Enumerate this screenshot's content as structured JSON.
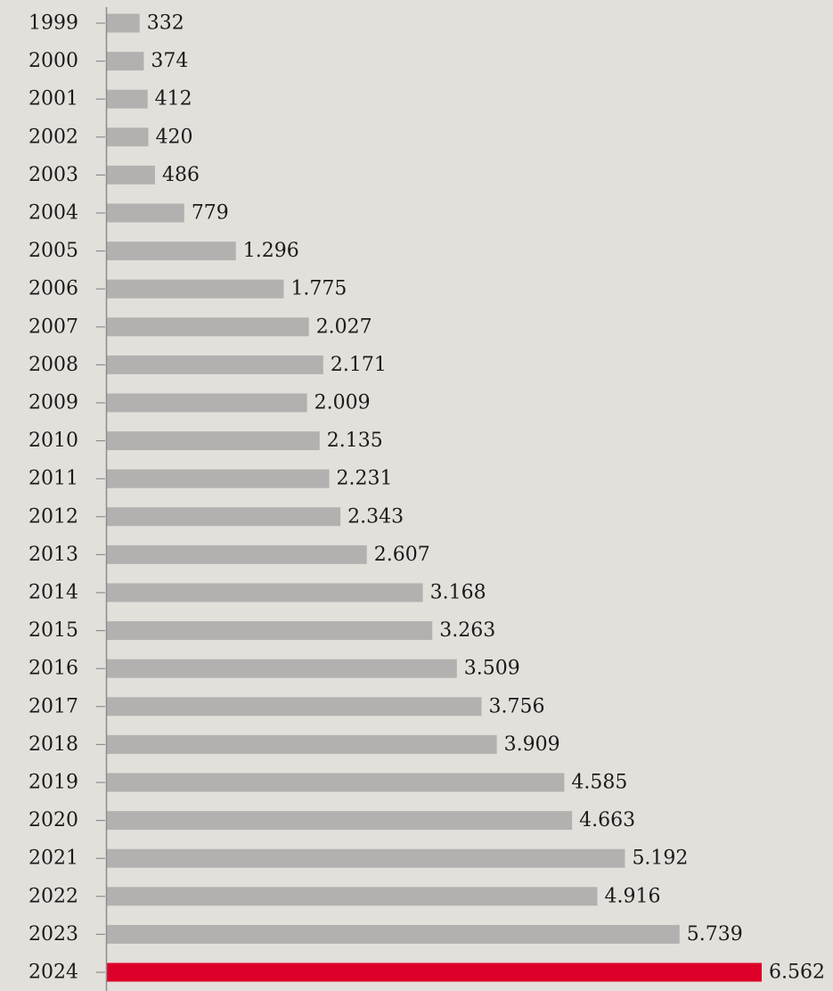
{
  "colors": {
    "background": "#e3e0dc",
    "bar": "#b2b1b0",
    "highlight": "#dc0028",
    "axis": "#8c8c8c",
    "text": "#1a1a1a"
  },
  "chart_data": {
    "type": "bar",
    "orientation": "horizontal",
    "title": "",
    "xlabel": "",
    "ylabel": "",
    "grid": false,
    "legend": "none",
    "xlim": [
      0,
      6562
    ],
    "highlight_category": "2024",
    "categories": [
      "1999",
      "2000",
      "2001",
      "2002",
      "2003",
      "2004",
      "2005",
      "2006",
      "2007",
      "2008",
      "2009",
      "2010",
      "2011",
      "2012",
      "2013",
      "2014",
      "2015",
      "2016",
      "2017",
      "2018",
      "2019",
      "2020",
      "2021",
      "2022",
      "2023",
      "2024"
    ],
    "values": [
      332,
      374,
      412,
      420,
      486,
      779,
      1296,
      1775,
      2027,
      2171,
      2009,
      2135,
      2231,
      2343,
      2607,
      3168,
      3263,
      3509,
      3756,
      3909,
      4585,
      4663,
      5192,
      4916,
      5739,
      6562
    ],
    "data_labels": [
      "332",
      "374",
      "412",
      "420",
      "486",
      "779",
      "1.296",
      "1.775",
      "2.027",
      "2.171",
      "2.009",
      "2.135",
      "2.231",
      "2.343",
      "2.607",
      "3.168",
      "3.263",
      "3.509",
      "3.756",
      "3.909",
      "4.585",
      "4.663",
      "5.192",
      "4.916",
      "5.739",
      "6.562"
    ]
  }
}
